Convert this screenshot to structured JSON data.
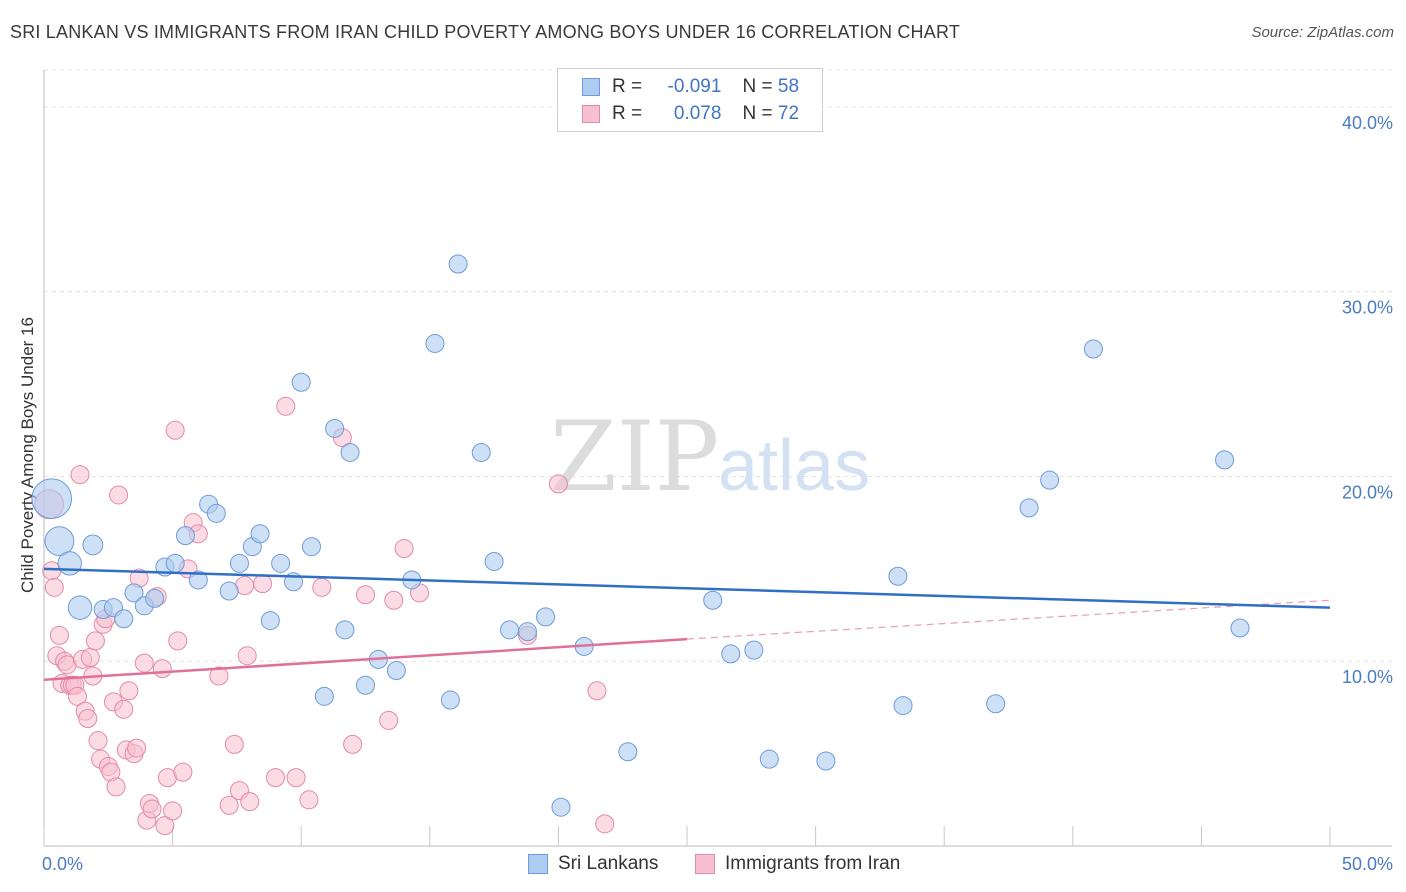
{
  "title": "SRI LANKAN VS IMMIGRANTS FROM IRAN CHILD POVERTY AMONG BOYS UNDER 16 CORRELATION CHART",
  "source": "Source: ZipAtlas.com",
  "watermark": {
    "zip": "ZIP",
    "atlas": "atlas"
  },
  "colors": {
    "blue_fill": "#aecbf0",
    "blue_stroke": "#6f9bd8",
    "blue_line": "#2f6fc6",
    "pink_fill": "#f7c0d0",
    "pink_stroke": "#e38aa7",
    "pink_line": "#e0709a",
    "tick_text": "#4a7cc4"
  },
  "legend": {
    "rows": [
      {
        "r_label": "R =",
        "r_value": "-0.091",
        "n_label": "N =",
        "n_value": "58"
      },
      {
        "r_label": "R =",
        "r_value": "0.078",
        "n_label": "N =",
        "n_value": "72"
      }
    ]
  },
  "bottom_legend": {
    "series1": "Sri Lankans",
    "series2": "Immigrants from Iran"
  },
  "chart_data": {
    "type": "scatter",
    "title": "SRI LANKAN VS IMMIGRANTS FROM IRAN CHILD POVERTY AMONG BOYS UNDER 16 CORRELATION CHART",
    "xlabel": "",
    "ylabel": "Child Poverty Among Boys Under 16",
    "xlim": [
      0,
      50
    ],
    "ylim": [
      0,
      42
    ],
    "x_tick_labels": [
      "0.0%",
      "50.0%"
    ],
    "y_ticks": [
      10,
      20,
      30,
      40
    ],
    "y_tick_labels": [
      "10.0%",
      "20.0%",
      "30.0%",
      "40.0%"
    ],
    "grid": true,
    "legend_position": "top-center",
    "series": [
      {
        "name": "Sri Lankans",
        "r": -0.091,
        "n": 58,
        "trend": {
          "x": [
            0,
            50
          ],
          "y": [
            15.0,
            12.9
          ]
        },
        "points": [
          [
            0.3,
            18.8,
            2.2
          ],
          [
            0.6,
            16.5,
            1.6
          ],
          [
            1.0,
            15.3,
            1.3
          ],
          [
            1.4,
            12.9,
            1.3
          ],
          [
            1.9,
            16.3,
            1.1
          ],
          [
            2.3,
            12.8,
            1
          ],
          [
            2.7,
            12.9,
            1
          ],
          [
            3.1,
            12.3,
            1
          ],
          [
            3.5,
            13.7,
            1
          ],
          [
            3.9,
            13.0,
            1
          ],
          [
            4.3,
            13.4,
            1
          ],
          [
            4.7,
            15.1,
            1
          ],
          [
            5.1,
            15.3,
            1
          ],
          [
            5.5,
            16.8,
            1
          ],
          [
            6.0,
            14.4,
            1
          ],
          [
            6.4,
            18.5,
            1
          ],
          [
            6.7,
            18.0,
            1
          ],
          [
            7.2,
            13.8,
            1
          ],
          [
            7.6,
            15.3,
            1
          ],
          [
            8.1,
            16.2,
            1
          ],
          [
            8.4,
            16.9,
            1
          ],
          [
            8.8,
            12.2,
            1
          ],
          [
            9.2,
            15.3,
            1
          ],
          [
            9.7,
            14.3,
            1
          ],
          [
            10.0,
            25.1,
            1
          ],
          [
            10.4,
            16.2,
            1
          ],
          [
            10.9,
            8.1,
            1
          ],
          [
            11.3,
            22.6,
            1
          ],
          [
            11.7,
            11.7,
            1
          ],
          [
            11.9,
            21.3,
            1
          ],
          [
            12.5,
            8.7,
            1
          ],
          [
            13.0,
            10.1,
            1
          ],
          [
            13.7,
            9.5,
            1
          ],
          [
            14.3,
            14.4,
            1
          ],
          [
            15.2,
            27.2,
            1
          ],
          [
            15.8,
            7.9,
            1
          ],
          [
            16.1,
            31.5,
            1
          ],
          [
            17.0,
            21.3,
            1
          ],
          [
            17.5,
            15.4,
            1
          ],
          [
            18.1,
            11.7,
            1
          ],
          [
            18.8,
            11.6,
            1
          ],
          [
            19.5,
            12.4,
            1
          ],
          [
            20.1,
            2.1,
            1
          ],
          [
            21.0,
            10.8,
            1
          ],
          [
            22.7,
            5.1,
            1
          ],
          [
            26.0,
            13.3,
            1
          ],
          [
            26.7,
            10.4,
            1
          ],
          [
            27.6,
            10.6,
            1
          ],
          [
            28.2,
            4.7,
            1
          ],
          [
            30.4,
            4.6,
            1
          ],
          [
            33.2,
            14.6,
            1
          ],
          [
            33.4,
            7.6,
            1
          ],
          [
            37.0,
            7.7,
            1
          ],
          [
            38.3,
            18.3,
            1
          ],
          [
            39.1,
            19.8,
            1
          ],
          [
            40.8,
            26.9,
            1
          ],
          [
            45.9,
            20.9,
            1
          ],
          [
            46.5,
            11.8,
            1
          ]
        ]
      },
      {
        "name": "Immigrants from Iran",
        "r": 0.078,
        "n": 72,
        "trend": {
          "x": [
            0,
            25
          ],
          "y": [
            9.0,
            11.2
          ]
        },
        "trend_dashed": {
          "x": [
            25,
            50
          ],
          "y": [
            11.2,
            13.3
          ]
        },
        "points": [
          [
            0.2,
            18.5,
            1.6
          ],
          [
            0.3,
            14.9,
            1
          ],
          [
            0.4,
            14.0,
            1
          ],
          [
            0.5,
            10.3,
            1
          ],
          [
            0.6,
            11.4,
            1
          ],
          [
            0.7,
            8.8,
            1
          ],
          [
            0.8,
            10.0,
            1
          ],
          [
            0.9,
            9.8,
            1
          ],
          [
            1.0,
            8.7,
            1
          ],
          [
            1.1,
            8.7,
            1
          ],
          [
            1.2,
            8.7,
            1
          ],
          [
            1.3,
            8.1,
            1
          ],
          [
            1.4,
            20.1,
            1
          ],
          [
            1.5,
            10.1,
            1
          ],
          [
            1.6,
            7.3,
            1
          ],
          [
            1.7,
            6.9,
            1
          ],
          [
            1.8,
            10.2,
            1
          ],
          [
            1.9,
            9.2,
            1
          ],
          [
            2.0,
            11.1,
            1
          ],
          [
            2.1,
            5.7,
            1
          ],
          [
            2.2,
            4.7,
            1
          ],
          [
            2.3,
            12.0,
            1
          ],
          [
            2.4,
            12.3,
            1
          ],
          [
            2.5,
            4.3,
            1
          ],
          [
            2.6,
            4.0,
            1
          ],
          [
            2.7,
            7.8,
            1
          ],
          [
            2.8,
            3.2,
            1
          ],
          [
            2.9,
            19.0,
            1
          ],
          [
            3.1,
            7.4,
            1
          ],
          [
            3.2,
            5.2,
            1
          ],
          [
            3.3,
            8.4,
            1
          ],
          [
            3.5,
            5.0,
            1
          ],
          [
            3.6,
            5.3,
            1
          ],
          [
            3.7,
            14.5,
            1
          ],
          [
            3.9,
            9.9,
            1
          ],
          [
            4.0,
            1.4,
            1
          ],
          [
            4.1,
            2.3,
            1
          ],
          [
            4.2,
            2.0,
            1
          ],
          [
            4.4,
            13.5,
            1
          ],
          [
            4.6,
            9.6,
            1
          ],
          [
            4.7,
            1.1,
            1
          ],
          [
            4.8,
            3.7,
            1
          ],
          [
            5.0,
            1.9,
            1
          ],
          [
            5.1,
            22.5,
            1
          ],
          [
            5.2,
            11.1,
            1
          ],
          [
            5.4,
            4.0,
            1
          ],
          [
            5.6,
            15.0,
            1
          ],
          [
            5.8,
            17.5,
            1
          ],
          [
            6.0,
            16.9,
            1
          ],
          [
            6.8,
            9.2,
            1
          ],
          [
            7.2,
            2.2,
            1
          ],
          [
            7.4,
            5.5,
            1
          ],
          [
            7.6,
            3.0,
            1
          ],
          [
            7.8,
            14.1,
            1
          ],
          [
            7.9,
            10.3,
            1
          ],
          [
            8.0,
            2.4,
            1
          ],
          [
            8.5,
            14.2,
            1
          ],
          [
            9.0,
            3.7,
            1
          ],
          [
            9.4,
            23.8,
            1
          ],
          [
            9.8,
            3.7,
            1
          ],
          [
            10.3,
            2.5,
            1
          ],
          [
            10.8,
            14.0,
            1
          ],
          [
            11.6,
            22.1,
            1
          ],
          [
            12.0,
            5.5,
            1
          ],
          [
            12.5,
            13.6,
            1
          ],
          [
            13.4,
            6.8,
            1
          ],
          [
            13.6,
            13.3,
            1
          ],
          [
            14.0,
            16.1,
            1
          ],
          [
            14.6,
            13.7,
            1
          ],
          [
            18.8,
            11.4,
            1
          ],
          [
            20.0,
            19.6,
            1
          ],
          [
            21.5,
            8.4,
            1
          ],
          [
            21.8,
            1.2,
            1
          ]
        ]
      }
    ]
  }
}
